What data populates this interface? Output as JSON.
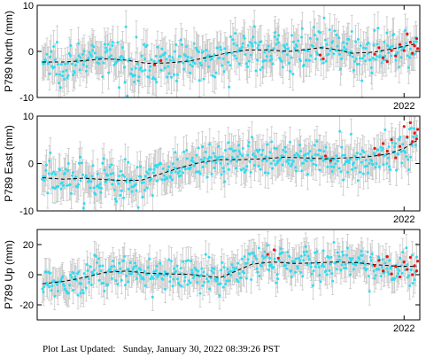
{
  "footer": "Plot Last Updated:   Sunday, January 30, 2022 08:39:26 PST",
  "colors": {
    "errorbar": "#c8c8c8",
    "point": "#2fdcf0",
    "recent_point": "#ee1111",
    "model": "#000000",
    "axes": "#000000"
  },
  "chart_data": [
    {
      "type": "scatter",
      "ylabel": "P789 North (mm)",
      "ylim": [
        -10,
        10
      ],
      "yticks": [
        -10,
        0,
        10
      ],
      "x_range": [
        2018.5,
        2022.15
      ],
      "xtick_label": "2022",
      "xtick_value": 2022.0,
      "noise": 2.2,
      "errorbar": 3.5,
      "model_curve": [
        [
          2018.55,
          -2.3
        ],
        [
          2018.75,
          -2.3
        ],
        [
          2018.95,
          -2.0
        ],
        [
          2019.15,
          -1.6
        ],
        [
          2019.35,
          -1.9
        ],
        [
          2019.55,
          -2.6
        ],
        [
          2019.75,
          -2.5
        ],
        [
          2019.95,
          -2.1
        ],
        [
          2020.1,
          -1.4
        ],
        [
          2020.3,
          -0.4
        ],
        [
          2020.5,
          0.3
        ],
        [
          2020.7,
          0.3
        ],
        [
          2020.9,
          0.0
        ],
        [
          2021.1,
          0.5
        ],
        [
          2021.2,
          0.8
        ],
        [
          2021.35,
          0.4
        ],
        [
          2021.5,
          -0.4
        ],
        [
          2021.7,
          -0.2
        ],
        [
          2021.9,
          0.6
        ],
        [
          2022.1,
          1.6
        ]
      ],
      "recent_points": [
        [
          2021.72,
          -0.6
        ],
        [
          2021.76,
          0.8
        ],
        [
          2021.8,
          -1.4
        ],
        [
          2021.84,
          -2.2
        ],
        [
          2021.88,
          0.2
        ],
        [
          2021.92,
          -1.0
        ],
        [
          2021.96,
          1.5
        ],
        [
          2022.0,
          0.2
        ],
        [
          2022.03,
          3.8
        ],
        [
          2022.06,
          2.0
        ],
        [
          2022.08,
          -0.4
        ],
        [
          2022.1,
          1.2
        ],
        [
          2022.12,
          2.8
        ],
        [
          2022.13,
          0.6
        ],
        [
          2019.62,
          -2.9
        ],
        [
          2019.68,
          -2.0
        ],
        [
          2021.2,
          -0.8
        ],
        [
          2021.23,
          -1.6
        ]
      ]
    },
    {
      "type": "scatter",
      "ylabel": "P789 East (mm)",
      "ylim": [
        -10,
        10
      ],
      "yticks": [
        -10,
        0,
        10
      ],
      "x_range": [
        2018.5,
        2022.15
      ],
      "xtick_label": "2022",
      "xtick_value": 2022.0,
      "noise": 2.1,
      "errorbar": 3.2,
      "model_curve": [
        [
          2018.55,
          -3.0
        ],
        [
          2018.75,
          -3.3
        ],
        [
          2018.95,
          -3.1
        ],
        [
          2019.15,
          -3.4
        ],
        [
          2019.35,
          -3.6
        ],
        [
          2019.5,
          -3.5
        ],
        [
          2019.65,
          -2.4
        ],
        [
          2019.85,
          -1.0
        ],
        [
          2020.05,
          0.2
        ],
        [
          2020.25,
          0.8
        ],
        [
          2020.45,
          0.8
        ],
        [
          2020.65,
          1.0
        ],
        [
          2020.85,
          1.3
        ],
        [
          2021.05,
          1.2
        ],
        [
          2021.25,
          1.0
        ],
        [
          2021.45,
          1.2
        ],
        [
          2021.65,
          1.4
        ],
        [
          2021.85,
          2.0
        ],
        [
          2022.0,
          3.2
        ],
        [
          2022.12,
          4.8
        ]
      ],
      "recent_points": [
        [
          2021.72,
          3.2
        ],
        [
          2021.76,
          1.8
        ],
        [
          2021.8,
          4.2
        ],
        [
          2021.84,
          2.6
        ],
        [
          2021.88,
          5.0
        ],
        [
          2021.92,
          1.2
        ],
        [
          2021.96,
          3.6
        ],
        [
          2022.0,
          7.8
        ],
        [
          2022.03,
          5.6
        ],
        [
          2022.06,
          8.6
        ],
        [
          2022.08,
          4.6
        ],
        [
          2022.1,
          6.4
        ],
        [
          2022.12,
          5.2
        ],
        [
          2022.13,
          7.2
        ],
        [
          2021.25,
          1.6
        ],
        [
          2021.3,
          0.6
        ]
      ]
    },
    {
      "type": "scatter",
      "ylabel": "P789 Up (mm)",
      "ylim": [
        -30,
        30
      ],
      "yticks": [
        -20,
        0,
        20
      ],
      "x_range": [
        2018.5,
        2022.15
      ],
      "xtick_label": "2022",
      "xtick_value": 2022.0,
      "noise": 5.5,
      "errorbar": 9.0,
      "model_curve": [
        [
          2018.55,
          -6.0
        ],
        [
          2018.75,
          -4.5
        ],
        [
          2018.95,
          -1.8
        ],
        [
          2019.15,
          1.5
        ],
        [
          2019.35,
          2.5
        ],
        [
          2019.55,
          1.0
        ],
        [
          2019.75,
          0.5
        ],
        [
          2019.95,
          0.2
        ],
        [
          2020.1,
          -1.0
        ],
        [
          2020.25,
          -1.8
        ],
        [
          2020.4,
          2.5
        ],
        [
          2020.55,
          7.0
        ],
        [
          2020.75,
          8.5
        ],
        [
          2020.95,
          7.5
        ],
        [
          2021.15,
          7.8
        ],
        [
          2021.35,
          8.5
        ],
        [
          2021.55,
          8.0
        ],
        [
          2021.75,
          6.5
        ],
        [
          2021.95,
          5.5
        ],
        [
          2022.12,
          5.5
        ]
      ],
      "recent_points": [
        [
          2021.72,
          6.0
        ],
        [
          2021.76,
          9.5
        ],
        [
          2021.8,
          2.5
        ],
        [
          2021.84,
          12.0
        ],
        [
          2021.88,
          0.5
        ],
        [
          2021.92,
          5.5
        ],
        [
          2021.96,
          -1.5
        ],
        [
          2022.0,
          8.5
        ],
        [
          2022.03,
          3.5
        ],
        [
          2022.06,
          11.5
        ],
        [
          2022.08,
          0.0
        ],
        [
          2022.1,
          6.0
        ],
        [
          2022.12,
          2.5
        ],
        [
          2022.13,
          9.0
        ],
        [
          2020.7,
          13.5
        ],
        [
          2020.76,
          16.5
        ],
        [
          2020.8,
          11.0
        ]
      ]
    }
  ]
}
